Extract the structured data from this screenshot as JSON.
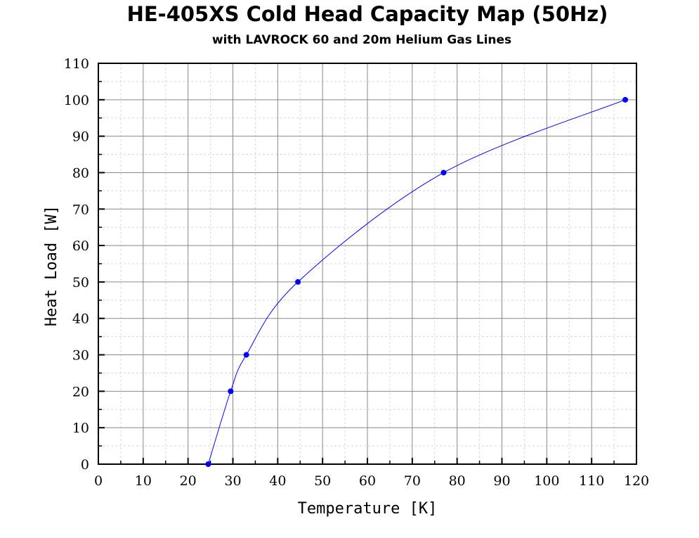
{
  "chart_data": {
    "type": "line",
    "title": "HE-405XS Cold Head Capacity Map (50Hz)",
    "subtitle": "with LAVROCK 60 and 20m Helium Gas Lines",
    "xlabel": "Temperature [K]",
    "ylabel": "Heat Load [W]",
    "xlim": [
      0,
      120
    ],
    "ylim": [
      0,
      110
    ],
    "x_ticks": [
      0,
      10,
      20,
      30,
      40,
      50,
      60,
      70,
      80,
      90,
      100,
      110,
      120
    ],
    "y_ticks": [
      0,
      10,
      20,
      30,
      40,
      50,
      60,
      70,
      80,
      90,
      100,
      110
    ],
    "grid": true,
    "series": [
      {
        "color": "#0000ff",
        "x": [
          24.5,
          29.5,
          33,
          44.5,
          77,
          117.5
        ],
        "y": [
          0,
          20,
          30,
          50,
          80,
          100
        ]
      }
    ]
  }
}
